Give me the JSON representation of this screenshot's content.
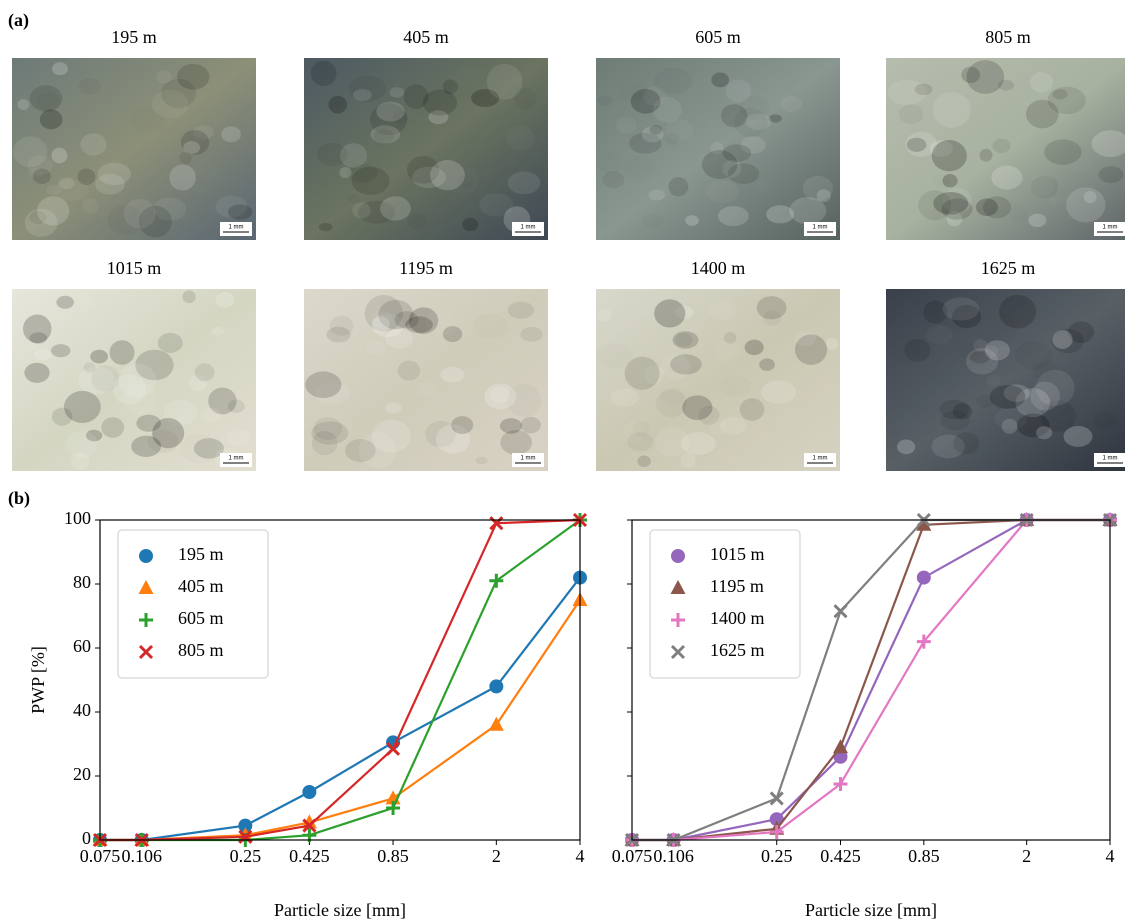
{
  "panel_a": {
    "label": "(a)",
    "scale_bar": "1 mm",
    "images": [
      {
        "title": "195 m"
      },
      {
        "title": "405 m"
      },
      {
        "title": "605 m"
      },
      {
        "title": "805 m"
      },
      {
        "title": "1015 m"
      },
      {
        "title": "1195 m"
      },
      {
        "title": "1400 m"
      },
      {
        "title": "1625 m"
      }
    ]
  },
  "panel_b": {
    "label": "(b)"
  },
  "chart_data": [
    {
      "type": "line",
      "xlabel": "Particle size [mm]",
      "ylabel": "PWP [%]",
      "xscale": "log",
      "legend": "upper left",
      "x": [
        0.075,
        0.106,
        0.25,
        0.425,
        0.85,
        2,
        4
      ],
      "xlim": [
        0.075,
        4
      ],
      "ylim": [
        0,
        100
      ],
      "xticks": [
        0.075,
        0.106,
        0.25,
        0.425,
        0.85,
        2,
        4
      ],
      "yticks": [
        0,
        20,
        40,
        60,
        80,
        100
      ],
      "series": [
        {
          "name": "195 m",
          "color": "#1f77b4",
          "marker": "circle",
          "values": [
            0,
            0,
            4.5,
            15,
            30.5,
            48,
            82
          ]
        },
        {
          "name": "405 m",
          "color": "#ff7f0e",
          "marker": "triangle",
          "values": [
            0,
            0,
            1.5,
            5.5,
            13,
            36,
            75
          ]
        },
        {
          "name": "605 m",
          "color": "#2ca02c",
          "marker": "plus",
          "values": [
            0,
            0,
            0,
            1.5,
            10,
            81,
            100
          ]
        },
        {
          "name": "805 m",
          "color": "#d62728",
          "marker": "x",
          "values": [
            0,
            0,
            1,
            4.5,
            28.5,
            99,
            100
          ]
        }
      ]
    },
    {
      "type": "line",
      "xlabel": "Particle size [mm]",
      "xscale": "log",
      "legend": "upper left",
      "x": [
        0.075,
        0.106,
        0.25,
        0.425,
        0.85,
        2,
        4
      ],
      "xlim": [
        0.075,
        4
      ],
      "ylim": [
        0,
        100
      ],
      "xticks": [
        0.075,
        0.106,
        0.25,
        0.425,
        0.85,
        2,
        4
      ],
      "yticks": [
        0,
        20,
        40,
        60,
        80,
        100
      ],
      "ytick_labels": false,
      "series": [
        {
          "name": "1015 m",
          "color": "#9467bd",
          "marker": "circle",
          "values": [
            0,
            0,
            6.5,
            26,
            82,
            100,
            100
          ]
        },
        {
          "name": "1195 m",
          "color": "#8c564b",
          "marker": "triangle",
          "values": [
            0,
            0,
            3.5,
            29,
            98.5,
            100,
            100
          ]
        },
        {
          "name": "1400 m",
          "color": "#e377c2",
          "marker": "plus",
          "values": [
            0,
            0,
            2.5,
            17.5,
            62,
            100,
            100
          ]
        },
        {
          "name": "1625 m",
          "color": "#7f7f7f",
          "marker": "x",
          "values": [
            0,
            0,
            13,
            71.5,
            100,
            100,
            100
          ]
        }
      ]
    }
  ]
}
